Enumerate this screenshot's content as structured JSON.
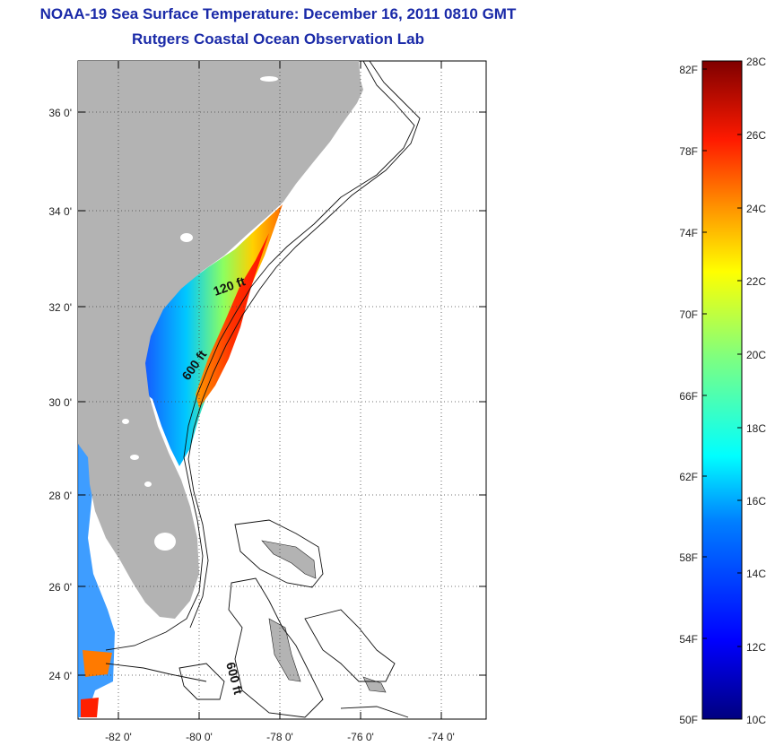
{
  "title": {
    "line1": "NOAA-19 Sea Surface Temperature:  December 16, 2011 0810 GMT",
    "line2": "Rutgers Coastal Ocean Observation Lab"
  },
  "map": {
    "lon_labels": [
      "-82 0'",
      "-80 0'",
      "-78 0'",
      "-76 0'",
      "-74 0'"
    ],
    "lat_labels": [
      "36 0'",
      "34 0'",
      "32 0'",
      "30 0'",
      "28 0'",
      "26 0'",
      "24 0'"
    ],
    "depth_labels": [
      "120 ft",
      "600 ft",
      "600 ft"
    ],
    "land_color": "#b3b3b3"
  },
  "colorbar": {
    "fahrenheit_labels": [
      "82F",
      "78F",
      "74F",
      "70F",
      "66F",
      "62F",
      "58F",
      "54F",
      "50F"
    ],
    "celsius_labels": [
      "28C",
      "26C",
      "24C",
      "22C",
      "20C",
      "18C",
      "16C",
      "14C",
      "12C",
      "10C"
    ],
    "colors": [
      "#00007f",
      "#0000ff",
      "#007fff",
      "#00ffff",
      "#7fff7f",
      "#ffff00",
      "#ff7f00",
      "#ff0000",
      "#7f0000"
    ]
  }
}
